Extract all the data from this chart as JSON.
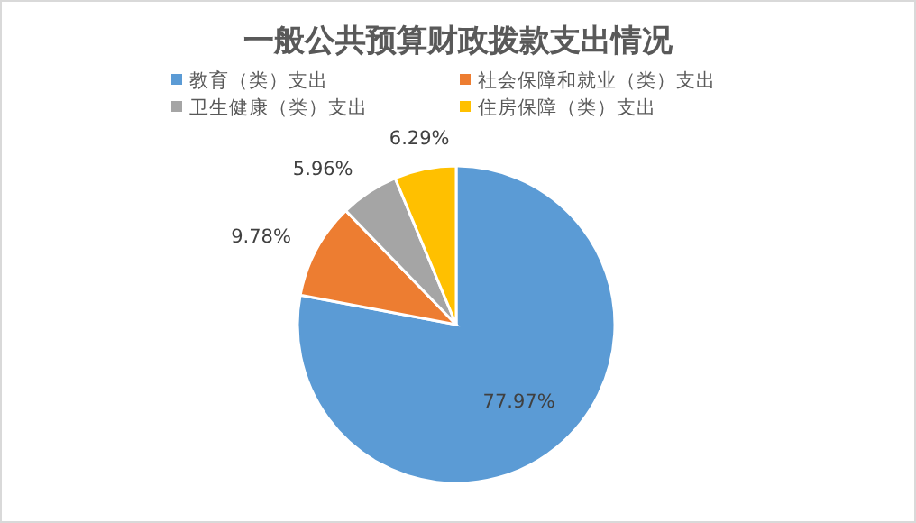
{
  "chart_data": {
    "type": "pie",
    "title": "一般公共预算财政拨款支出情况",
    "categories": [
      "教育（类）支出",
      "社会保障和就业（类）支出",
      "卫生健康（类）支出",
      "住房保障（类）支出"
    ],
    "values": [
      77.97,
      9.78,
      5.96,
      6.29
    ],
    "colors": [
      "#5b9bd5",
      "#ed7d31",
      "#a5a5a5",
      "#ffc000"
    ],
    "value_labels": [
      "77.97%",
      "9.78%",
      "5.96%",
      "6.29%"
    ],
    "legend": "top"
  }
}
